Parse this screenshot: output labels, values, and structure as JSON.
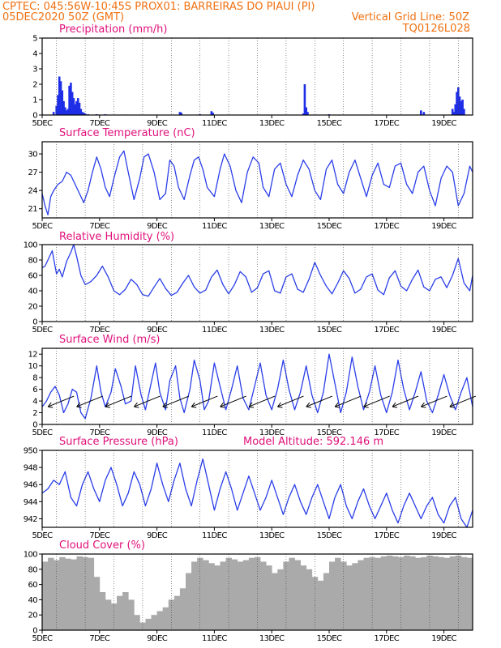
{
  "header": {
    "left1": "CPTEC:   045:56W-10:45S   PROX01: BARREIRAS DO PIAUI (PI)",
    "left2": "05DEC2020 50Z (GMT)",
    "right2": "Vertical Grid Line: 50Z",
    "right3": "TQ0126L028"
  },
  "colors": {
    "header": "#f07010",
    "title": "#e0107a",
    "line": "#2a3ee8",
    "bar": "#1e2ee6",
    "cloud": "#aaaaaa"
  },
  "x_axis": {
    "labels": [
      "5DEC",
      "7DEC",
      "9DEC",
      "11DEC",
      "13DEC",
      "15DEC",
      "17DEC",
      "19DEC"
    ],
    "label_days": [
      0,
      2,
      4,
      6,
      8,
      10,
      12,
      14
    ],
    "grid_days": [
      0.5,
      1.5,
      2.5,
      3.5,
      4.5,
      5.5,
      6.5,
      7.5,
      8.5,
      9.5,
      10.5,
      11.5,
      12.5,
      13.5,
      14.5
    ],
    "range_days": [
      0,
      15
    ]
  },
  "chart_data": [
    {
      "type": "bar",
      "title": "Precipitation (mm/h)",
      "ylim": [
        0,
        5
      ],
      "yticks": [
        0,
        1,
        2,
        3,
        4,
        5
      ],
      "x_range": [
        "05DEC2020",
        "20DEC2020"
      ],
      "values": [
        [
          0.4,
          0.2
        ],
        [
          0.5,
          0.6
        ],
        [
          0.55,
          1.3
        ],
        [
          0.6,
          2.5
        ],
        [
          0.65,
          2.2
        ],
        [
          0.7,
          1.6
        ],
        [
          0.75,
          0.9
        ],
        [
          0.8,
          0.5
        ],
        [
          0.85,
          0.3
        ],
        [
          0.9,
          0.4
        ],
        [
          0.95,
          1.9
        ],
        [
          1.0,
          2.1
        ],
        [
          1.05,
          1.5
        ],
        [
          1.1,
          1.1
        ],
        [
          1.15,
          0.7
        ],
        [
          1.2,
          0.9
        ],
        [
          1.25,
          1.1
        ],
        [
          1.3,
          0.8
        ],
        [
          1.35,
          0.4
        ],
        [
          1.4,
          0.2
        ],
        [
          1.45,
          0.15
        ],
        [
          1.5,
          0.1
        ],
        [
          1.6,
          0.05
        ],
        [
          1.9,
          0.05
        ],
        [
          2.2,
          0.05
        ],
        [
          2.9,
          0.03
        ],
        [
          3.4,
          0.03
        ],
        [
          4.8,
          0.2
        ],
        [
          4.85,
          0.15
        ],
        [
          5.5,
          0.05
        ],
        [
          5.9,
          0.25
        ],
        [
          5.95,
          0.15
        ],
        [
          9.1,
          0.1
        ],
        [
          9.15,
          2.0
        ],
        [
          9.2,
          0.5
        ],
        [
          9.25,
          0.2
        ],
        [
          10.0,
          0.05
        ],
        [
          13.2,
          0.3
        ],
        [
          13.3,
          0.2
        ],
        [
          14.3,
          0.4
        ],
        [
          14.35,
          0.2
        ],
        [
          14.4,
          0.7
        ],
        [
          14.45,
          1.5
        ],
        [
          14.5,
          1.8
        ],
        [
          14.55,
          1.2
        ],
        [
          14.6,
          0.9
        ],
        [
          14.65,
          1.0
        ],
        [
          14.7,
          0.4
        ]
      ]
    },
    {
      "type": "line",
      "title": "Surface Temperature (nC)",
      "ylim": [
        19.5,
        32
      ],
      "yticks": [
        21,
        24,
        27,
        30
      ],
      "x": [
        0,
        0.1,
        0.2,
        0.3,
        0.4,
        0.55,
        0.7,
        0.85,
        1.0,
        1.15,
        1.3,
        1.45,
        1.6,
        1.75,
        1.9,
        2.05,
        2.2,
        2.35,
        2.5,
        2.7,
        2.85,
        3.0,
        3.2,
        3.4,
        3.55,
        3.7,
        3.9,
        4.1,
        4.3,
        4.45,
        4.6,
        4.75,
        4.95,
        5.15,
        5.3,
        5.45,
        5.6,
        5.75,
        6.0,
        6.2,
        6.35,
        6.55,
        6.75,
        6.95,
        7.15,
        7.35,
        7.55,
        7.7,
        7.9,
        8.1,
        8.3,
        8.5,
        8.7,
        8.9,
        9.1,
        9.3,
        9.5,
        9.7,
        9.9,
        10.1,
        10.3,
        10.5,
        10.7,
        10.9,
        11.1,
        11.3,
        11.5,
        11.7,
        11.9,
        12.1,
        12.3,
        12.5,
        12.7,
        12.9,
        13.1,
        13.3,
        13.5,
        13.7,
        13.9,
        14.1,
        14.3,
        14.5,
        14.7,
        14.9,
        15.0
      ],
      "values": [
        23.5,
        21.5,
        20.0,
        23.0,
        24.0,
        25.0,
        25.5,
        27.0,
        26.5,
        25.0,
        23.5,
        22.0,
        24.0,
        27.0,
        29.5,
        27.5,
        24.5,
        23.0,
        26.0,
        29.5,
        30.5,
        27.0,
        22.5,
        26.0,
        29.5,
        30.0,
        27.0,
        22.5,
        23.5,
        29.0,
        28.0,
        24.5,
        22.5,
        26.5,
        29.0,
        29.5,
        27.5,
        24.5,
        23.0,
        27.5,
        30.0,
        28.0,
        24.0,
        22.0,
        27.0,
        29.5,
        28.5,
        24.5,
        23.0,
        27.5,
        28.5,
        25.0,
        23.0,
        26.5,
        29.0,
        27.5,
        24.0,
        22.5,
        27.5,
        29.0,
        25.0,
        23.5,
        27.0,
        29.0,
        26.0,
        23.0,
        26.5,
        28.5,
        25.0,
        24.5,
        28.0,
        28.5,
        25.0,
        23.5,
        27.0,
        28.0,
        24.0,
        21.5,
        26.0,
        28.0,
        27.0,
        21.5,
        23.5,
        28.0,
        27.0
      ]
    },
    {
      "type": "line",
      "title": "Relative Humidity (%)",
      "ylim": [
        0,
        100
      ],
      "yticks": [
        0,
        20,
        40,
        60,
        80,
        100
      ],
      "x": [
        0,
        0.1,
        0.2,
        0.35,
        0.5,
        0.6,
        0.7,
        0.85,
        1.0,
        1.1,
        1.2,
        1.35,
        1.5,
        1.7,
        1.9,
        2.1,
        2.3,
        2.5,
        2.7,
        2.9,
        3.1,
        3.3,
        3.5,
        3.7,
        3.9,
        4.1,
        4.3,
        4.5,
        4.7,
        4.9,
        5.1,
        5.3,
        5.5,
        5.7,
        5.9,
        6.1,
        6.3,
        6.5,
        6.7,
        6.9,
        7.1,
        7.3,
        7.5,
        7.7,
        7.9,
        8.1,
        8.3,
        8.5,
        8.7,
        8.9,
        9.1,
        9.3,
        9.5,
        9.7,
        9.9,
        10.1,
        10.3,
        10.5,
        10.7,
        10.9,
        11.1,
        11.3,
        11.5,
        11.7,
        11.9,
        12.1,
        12.3,
        12.5,
        12.7,
        12.9,
        13.1,
        13.3,
        13.5,
        13.7,
        13.9,
        14.1,
        14.3,
        14.5,
        14.7,
        14.9,
        15.0
      ],
      "values": [
        70,
        72,
        80,
        92,
        62,
        68,
        58,
        78,
        90,
        100,
        85,
        60,
        48,
        52,
        60,
        72,
        58,
        40,
        35,
        42,
        55,
        48,
        35,
        33,
        45,
        56,
        43,
        34,
        38,
        50,
        60,
        45,
        37,
        41,
        58,
        67,
        48,
        36,
        48,
        65,
        58,
        38,
        44,
        62,
        66,
        40,
        37,
        58,
        62,
        42,
        38,
        55,
        77,
        60,
        46,
        36,
        50,
        66,
        56,
        37,
        42,
        58,
        62,
        41,
        35,
        57,
        66,
        46,
        40,
        55,
        67,
        45,
        40,
        55,
        58,
        44,
        60,
        82,
        50,
        40,
        60
      ]
    },
    {
      "type": "line",
      "title": "Surface Wind (m/s)",
      "ylim": [
        0,
        13
      ],
      "yticks": [
        0,
        2,
        4,
        6,
        8,
        10,
        12
      ],
      "x": [
        0,
        0.15,
        0.3,
        0.45,
        0.6,
        0.75,
        0.9,
        1.05,
        1.2,
        1.35,
        1.5,
        1.7,
        1.9,
        2.05,
        2.2,
        2.4,
        2.55,
        2.75,
        2.9,
        3.1,
        3.25,
        3.45,
        3.6,
        3.75,
        3.95,
        4.1,
        4.3,
        4.45,
        4.65,
        4.8,
        4.95,
        5.15,
        5.3,
        5.5,
        5.65,
        5.8,
        6.0,
        6.2,
        6.4,
        6.6,
        6.8,
        7.0,
        7.2,
        7.4,
        7.6,
        7.8,
        8.0,
        8.2,
        8.4,
        8.6,
        8.8,
        9.0,
        9.2,
        9.4,
        9.6,
        9.8,
        10.0,
        10.2,
        10.4,
        10.6,
        10.8,
        11.0,
        11.2,
        11.4,
        11.6,
        11.8,
        12.0,
        12.2,
        12.4,
        12.6,
        12.8,
        13.0,
        13.2,
        13.4,
        13.6,
        13.8,
        14.0,
        14.2,
        14.4,
        14.6,
        14.8,
        15.0
      ],
      "values": [
        3.0,
        4.0,
        5.5,
        6.5,
        5.0,
        2.0,
        3.5,
        6.0,
        5.5,
        2.0,
        1.0,
        4.5,
        10.0,
        5.5,
        3.0,
        5.5,
        9.5,
        6.5,
        3.5,
        4.0,
        10.0,
        5.0,
        2.5,
        6.0,
        10.5,
        5.5,
        2.5,
        7.5,
        10.0,
        4.5,
        2.0,
        6.0,
        11.0,
        7.5,
        2.5,
        4.0,
        10.5,
        6.5,
        2.5,
        6.0,
        10.0,
        4.5,
        2.5,
        6.5,
        10.5,
        5.0,
        2.5,
        6.0,
        11.0,
        6.0,
        2.5,
        5.5,
        10.0,
        5.0,
        2.0,
        5.5,
        12.0,
        7.0,
        2.0,
        5.5,
        11.5,
        6.5,
        2.5,
        5.5,
        10.0,
        5.0,
        2.0,
        5.5,
        11.0,
        6.0,
        2.5,
        5.5,
        9.0,
        4.0,
        2.0,
        5.0,
        8.5,
        5.0,
        2.5,
        5.5,
        8.0,
        3.0
      ]
    },
    {
      "type": "line",
      "title": "Surface Pressure (hPa)",
      "annotation": "Model Altitude: 592.146 m",
      "ylim": [
        941,
        950
      ],
      "yticks": [
        942,
        944,
        946,
        948,
        950
      ],
      "x": [
        0,
        0.2,
        0.4,
        0.6,
        0.8,
        1.0,
        1.2,
        1.4,
        1.6,
        1.8,
        2.0,
        2.2,
        2.4,
        2.6,
        2.8,
        3.0,
        3.2,
        3.4,
        3.6,
        3.8,
        4.0,
        4.2,
        4.4,
        4.6,
        4.8,
        5.0,
        5.2,
        5.4,
        5.6,
        5.8,
        6.0,
        6.2,
        6.4,
        6.6,
        6.8,
        7.0,
        7.2,
        7.4,
        7.6,
        7.8,
        8.0,
        8.2,
        8.4,
        8.6,
        8.8,
        9.0,
        9.2,
        9.4,
        9.6,
        9.8,
        10.0,
        10.2,
        10.4,
        10.6,
        10.8,
        11.0,
        11.2,
        11.4,
        11.6,
        11.8,
        12.0,
        12.2,
        12.4,
        12.6,
        12.8,
        13.0,
        13.2,
        13.4,
        13.6,
        13.8,
        14.0,
        14.2,
        14.4,
        14.6,
        14.8,
        15.0
      ],
      "values": [
        945.0,
        945.5,
        946.5,
        946.0,
        947.5,
        944.5,
        943.5,
        946.0,
        947.5,
        945.5,
        944.0,
        946.5,
        948.0,
        946.0,
        943.5,
        945.0,
        947.5,
        946.0,
        943.5,
        945.5,
        948.5,
        946.0,
        944.0,
        946.5,
        948.5,
        945.5,
        943.5,
        946.5,
        949.0,
        946.0,
        943.0,
        945.5,
        947.5,
        945.5,
        943.0,
        945.0,
        947.0,
        945.0,
        943.0,
        944.5,
        946.5,
        944.5,
        942.5,
        944.5,
        946.0,
        944.0,
        942.5,
        944.5,
        946.0,
        944.0,
        942.0,
        944.5,
        946.0,
        943.5,
        942.0,
        944.0,
        945.5,
        943.5,
        942.0,
        943.5,
        945.0,
        943.0,
        941.5,
        943.5,
        945.0,
        943.5,
        942.0,
        943.5,
        944.5,
        942.5,
        941.5,
        943.5,
        944.5,
        942.0,
        941.0,
        943.0
      ]
    },
    {
      "type": "bar",
      "title": "Cloud Cover (%)",
      "ylim": [
        0,
        100
      ],
      "yticks": [
        0,
        20,
        40,
        60,
        80,
        100
      ],
      "x": [
        0,
        0.2,
        0.4,
        0.6,
        0.8,
        1.0,
        1.2,
        1.4,
        1.6,
        1.8,
        2.0,
        2.2,
        2.4,
        2.6,
        2.8,
        3.0,
        3.2,
        3.4,
        3.6,
        3.8,
        4.0,
        4.2,
        4.4,
        4.6,
        4.8,
        5.0,
        5.2,
        5.4,
        5.6,
        5.8,
        6.0,
        6.2,
        6.4,
        6.6,
        6.8,
        7.0,
        7.2,
        7.4,
        7.6,
        7.8,
        8.0,
        8.2,
        8.4,
        8.6,
        8.8,
        9.0,
        9.2,
        9.4,
        9.6,
        9.8,
        10.0,
        10.2,
        10.4,
        10.6,
        10.8,
        11.0,
        11.2,
        11.4,
        11.6,
        11.8,
        12.0,
        12.2,
        12.4,
        12.6,
        12.8,
        13.0,
        13.2,
        13.4,
        13.6,
        13.8,
        14.0,
        14.2,
        14.4,
        14.6,
        14.8,
        15.0
      ],
      "values": [
        90,
        95,
        92,
        96,
        94,
        93,
        97,
        96,
        95,
        70,
        50,
        40,
        35,
        45,
        50,
        40,
        20,
        10,
        15,
        20,
        25,
        30,
        40,
        45,
        55,
        75,
        90,
        95,
        92,
        88,
        85,
        90,
        95,
        93,
        90,
        92,
        95,
        96,
        90,
        85,
        75,
        80,
        90,
        95,
        92,
        85,
        80,
        70,
        65,
        75,
        90,
        95,
        90,
        85,
        88,
        92,
        95,
        96,
        95,
        97,
        98,
        97,
        96,
        98,
        97,
        95,
        96,
        98,
        97,
        96,
        95,
        97,
        98,
        96,
        95,
        97
      ]
    }
  ]
}
